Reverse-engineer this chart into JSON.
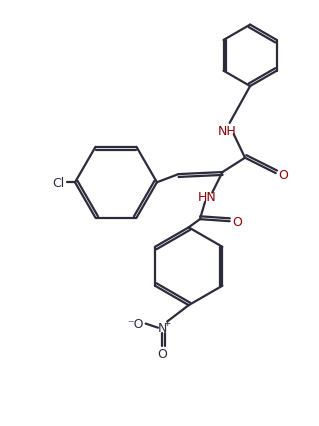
{
  "background_color": "#ffffff",
  "line_color": "#2b2b3b",
  "atom_color": "#8B0000",
  "lw": 1.6,
  "doff": 2.8,
  "figsize": [
    3.19,
    4.27
  ],
  "dpi": 100,
  "xlim": [
    10,
    319
  ],
  "ylim": [
    10,
    427
  ]
}
